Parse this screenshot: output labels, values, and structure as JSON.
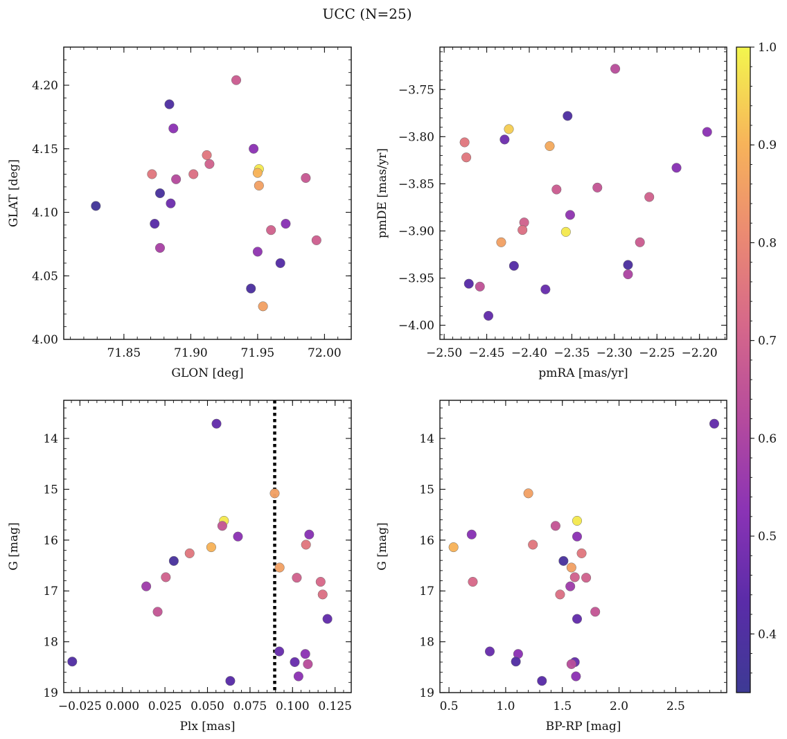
{
  "figure": {
    "title": "UCC (N=25)"
  },
  "colorbar": {
    "min": 0.34,
    "max": 1.0,
    "ticks": [
      0.4,
      0.5,
      0.6,
      0.7,
      0.8,
      0.9,
      1.0
    ],
    "tick_labels": [
      "0.4",
      "0.5",
      "0.6",
      "0.7",
      "0.8",
      "0.9",
      "1.0"
    ],
    "colormap": "plasma"
  },
  "chart_data": [
    {
      "type": "scatter",
      "title": "",
      "xlabel": "GLON [deg]",
      "ylabel": "GLAT [deg]",
      "xlim": [
        71.805,
        72.02
      ],
      "ylim": [
        4.0,
        4.23
      ],
      "xticks": [
        71.85,
        71.9,
        71.95,
        72.0
      ],
      "xtick_labels": [
        "71.85",
        "71.90",
        "71.95",
        "72.00"
      ],
      "yticks": [
        4.0,
        4.05,
        4.1,
        4.15,
        4.2
      ],
      "ytick_labels": [
        "4.00",
        "4.05",
        "4.10",
        "4.15",
        "4.20"
      ],
      "invert_y": false,
      "points": [
        {
          "x": 71.829,
          "y": 4.105,
          "c": 0.36
        },
        {
          "x": 71.884,
          "y": 4.185,
          "c": 0.4
        },
        {
          "x": 71.934,
          "y": 4.204,
          "c": 0.68
        },
        {
          "x": 71.887,
          "y": 4.166,
          "c": 0.53
        },
        {
          "x": 71.947,
          "y": 4.15,
          "c": 0.53
        },
        {
          "x": 71.912,
          "y": 4.145,
          "c": 0.76
        },
        {
          "x": 71.914,
          "y": 4.138,
          "c": 0.7
        },
        {
          "x": 71.951,
          "y": 4.134,
          "c": 0.98
        },
        {
          "x": 71.95,
          "y": 4.131,
          "c": 0.9
        },
        {
          "x": 71.871,
          "y": 4.13,
          "c": 0.76
        },
        {
          "x": 71.902,
          "y": 4.13,
          "c": 0.74
        },
        {
          "x": 71.986,
          "y": 4.127,
          "c": 0.67
        },
        {
          "x": 71.889,
          "y": 4.126,
          "c": 0.62
        },
        {
          "x": 71.951,
          "y": 4.121,
          "c": 0.86
        },
        {
          "x": 71.877,
          "y": 4.115,
          "c": 0.38
        },
        {
          "x": 71.885,
          "y": 4.107,
          "c": 0.47
        },
        {
          "x": 71.873,
          "y": 4.091,
          "c": 0.43
        },
        {
          "x": 71.971,
          "y": 4.091,
          "c": 0.52
        },
        {
          "x": 71.96,
          "y": 4.086,
          "c": 0.7
        },
        {
          "x": 71.994,
          "y": 4.078,
          "c": 0.69
        },
        {
          "x": 71.877,
          "y": 4.072,
          "c": 0.59
        },
        {
          "x": 71.95,
          "y": 4.069,
          "c": 0.54
        },
        {
          "x": 71.967,
          "y": 4.06,
          "c": 0.42
        },
        {
          "x": 71.945,
          "y": 4.04,
          "c": 0.39
        },
        {
          "x": 71.954,
          "y": 4.026,
          "c": 0.86
        }
      ]
    },
    {
      "type": "scatter",
      "title": "",
      "xlabel": "pmRA [mas/yr]",
      "ylabel": "pmDE [mas/yr]",
      "xlim": [
        -2.505,
        -2.168
      ],
      "ylim": [
        -4.015,
        -3.705
      ],
      "xticks": [
        -2.5,
        -2.45,
        -2.4,
        -2.35,
        -2.3,
        -2.25,
        -2.2
      ],
      "xtick_labels": [
        "−2.50",
        "−2.45",
        "−2.40",
        "−2.35",
        "−2.30",
        "−2.25",
        "−2.20"
      ],
      "yticks": [
        -4.0,
        -3.95,
        -3.9,
        -3.85,
        -3.8,
        -3.75
      ],
      "ytick_labels": [
        "−4.00",
        "−3.95",
        "−3.90",
        "−3.85",
        "−3.80",
        "−3.75"
      ],
      "invert_y": false,
      "points": [
        {
          "x": -2.299,
          "y": -3.728,
          "c": 0.63
        },
        {
          "x": -2.355,
          "y": -3.778,
          "c": 0.4
        },
        {
          "x": -2.424,
          "y": -3.792,
          "c": 0.94
        },
        {
          "x": -2.191,
          "y": -3.795,
          "c": 0.53
        },
        {
          "x": -2.476,
          "y": -3.806,
          "c": 0.76
        },
        {
          "x": -2.429,
          "y": -3.803,
          "c": 0.47
        },
        {
          "x": -2.376,
          "y": -3.81,
          "c": 0.88
        },
        {
          "x": -2.474,
          "y": -3.822,
          "c": 0.76
        },
        {
          "x": -2.227,
          "y": -3.833,
          "c": 0.52
        },
        {
          "x": -2.368,
          "y": -3.856,
          "c": 0.68
        },
        {
          "x": -2.32,
          "y": -3.854,
          "c": 0.66
        },
        {
          "x": -2.259,
          "y": -3.864,
          "c": 0.7
        },
        {
          "x": -2.352,
          "y": -3.883,
          "c": 0.54
        },
        {
          "x": -2.406,
          "y": -3.891,
          "c": 0.7
        },
        {
          "x": -2.408,
          "y": -3.899,
          "c": 0.74
        },
        {
          "x": -2.357,
          "y": -3.901,
          "c": 0.98
        },
        {
          "x": -2.433,
          "y": -3.912,
          "c": 0.86
        },
        {
          "x": -2.27,
          "y": -3.912,
          "c": 0.68
        },
        {
          "x": -2.418,
          "y": -3.937,
          "c": 0.42
        },
        {
          "x": -2.284,
          "y": -3.936,
          "c": 0.39
        },
        {
          "x": -2.284,
          "y": -3.946,
          "c": 0.6
        },
        {
          "x": -2.471,
          "y": -3.956,
          "c": 0.43
        },
        {
          "x": -2.458,
          "y": -3.959,
          "c": 0.65
        },
        {
          "x": -2.381,
          "y": -3.962,
          "c": 0.46
        },
        {
          "x": -2.448,
          "y": -3.99,
          "c": 0.45
        }
      ]
    },
    {
      "type": "scatter",
      "title": "",
      "xlabel": "Plx [mas]",
      "ylabel": "G [mag]",
      "xlim": [
        -0.0345,
        0.1345
      ],
      "ylim": [
        13.25,
        19.0
      ],
      "xticks": [
        -0.025,
        0.0,
        0.025,
        0.05,
        0.075,
        0.1,
        0.125
      ],
      "xtick_labels": [
        "−0.025",
        "0.000",
        "0.025",
        "0.050",
        "0.075",
        "0.100",
        "0.125"
      ],
      "yticks": [
        14,
        15,
        16,
        17,
        18,
        19
      ],
      "ytick_labels": [
        "14",
        "15",
        "16",
        "17",
        "18",
        "19"
      ],
      "invert_y": true,
      "vline": {
        "x": 0.0895,
        "style": "dotted"
      },
      "points": [
        {
          "x": 0.0553,
          "y": 13.71,
          "c": 0.45
        },
        {
          "x": 0.0895,
          "y": 15.08,
          "c": 0.86
        },
        {
          "x": 0.0597,
          "y": 15.62,
          "c": 0.98
        },
        {
          "x": 0.0587,
          "y": 15.72,
          "c": 0.66
        },
        {
          "x": 0.1098,
          "y": 15.89,
          "c": 0.52
        },
        {
          "x": 0.0679,
          "y": 15.93,
          "c": 0.53
        },
        {
          "x": 0.1079,
          "y": 16.09,
          "c": 0.76
        },
        {
          "x": 0.0522,
          "y": 16.14,
          "c": 0.9
        },
        {
          "x": 0.0395,
          "y": 16.26,
          "c": 0.76
        },
        {
          "x": 0.0302,
          "y": 16.41,
          "c": 0.38
        },
        {
          "x": 0.0924,
          "y": 16.54,
          "c": 0.86
        },
        {
          "x": 0.0255,
          "y": 16.73,
          "c": 0.7
        },
        {
          "x": 0.1025,
          "y": 16.74,
          "c": 0.7
        },
        {
          "x": 0.1165,
          "y": 16.82,
          "c": 0.72
        },
        {
          "x": 0.014,
          "y": 16.91,
          "c": 0.57
        },
        {
          "x": 0.1177,
          "y": 17.07,
          "c": 0.74
        },
        {
          "x": 0.0207,
          "y": 17.41,
          "c": 0.66
        },
        {
          "x": 0.1205,
          "y": 17.55,
          "c": 0.45
        },
        {
          "x": 0.0922,
          "y": 18.19,
          "c": 0.46
        },
        {
          "x": 0.1075,
          "y": 18.24,
          "c": 0.53
        },
        {
          "x": -0.0295,
          "y": 18.39,
          "c": 0.41
        },
        {
          "x": 0.1013,
          "y": 18.4,
          "c": 0.46
        },
        {
          "x": 0.109,
          "y": 18.44,
          "c": 0.63
        },
        {
          "x": 0.1035,
          "y": 18.68,
          "c": 0.53
        },
        {
          "x": 0.0634,
          "y": 18.77,
          "c": 0.43
        }
      ]
    },
    {
      "type": "scatter",
      "title": "",
      "xlabel": "BP-RP [mag]",
      "ylabel": "G [mag]",
      "xlim": [
        0.42,
        2.95
      ],
      "ylim": [
        13.25,
        19.0
      ],
      "xticks": [
        0.5,
        1.0,
        1.5,
        2.0,
        2.5
      ],
      "xtick_labels": [
        "0.5",
        "1.0",
        "1.5",
        "2.0",
        "2.5"
      ],
      "yticks": [
        14,
        15,
        16,
        17,
        18,
        19
      ],
      "ytick_labels": [
        "14",
        "15",
        "16",
        "17",
        "18",
        "19"
      ],
      "invert_y": true,
      "points": [
        {
          "x": 2.84,
          "y": 13.71,
          "c": 0.45
        },
        {
          "x": 1.2,
          "y": 15.08,
          "c": 0.86
        },
        {
          "x": 1.63,
          "y": 15.62,
          "c": 0.98
        },
        {
          "x": 1.44,
          "y": 15.72,
          "c": 0.66
        },
        {
          "x": 0.7,
          "y": 15.89,
          "c": 0.52
        },
        {
          "x": 1.63,
          "y": 15.93,
          "c": 0.53
        },
        {
          "x": 1.24,
          "y": 16.09,
          "c": 0.76
        },
        {
          "x": 0.54,
          "y": 16.14,
          "c": 0.9
        },
        {
          "x": 1.67,
          "y": 16.26,
          "c": 0.76
        },
        {
          "x": 1.51,
          "y": 16.41,
          "c": 0.38
        },
        {
          "x": 1.58,
          "y": 16.54,
          "c": 0.86
        },
        {
          "x": 1.61,
          "y": 16.73,
          "c": 0.7
        },
        {
          "x": 1.71,
          "y": 16.74,
          "c": 0.7
        },
        {
          "x": 0.71,
          "y": 16.82,
          "c": 0.72
        },
        {
          "x": 1.57,
          "y": 16.91,
          "c": 0.57
        },
        {
          "x": 1.48,
          "y": 17.07,
          "c": 0.74
        },
        {
          "x": 1.79,
          "y": 17.41,
          "c": 0.66
        },
        {
          "x": 1.63,
          "y": 17.55,
          "c": 0.45
        },
        {
          "x": 0.86,
          "y": 18.19,
          "c": 0.46
        },
        {
          "x": 1.11,
          "y": 18.24,
          "c": 0.53
        },
        {
          "x": 1.09,
          "y": 18.39,
          "c": 0.41
        },
        {
          "x": 1.61,
          "y": 18.4,
          "c": 0.46
        },
        {
          "x": 1.58,
          "y": 18.44,
          "c": 0.63
        },
        {
          "x": 1.62,
          "y": 18.68,
          "c": 0.53
        },
        {
          "x": 1.32,
          "y": 18.77,
          "c": 0.43
        }
      ]
    }
  ]
}
